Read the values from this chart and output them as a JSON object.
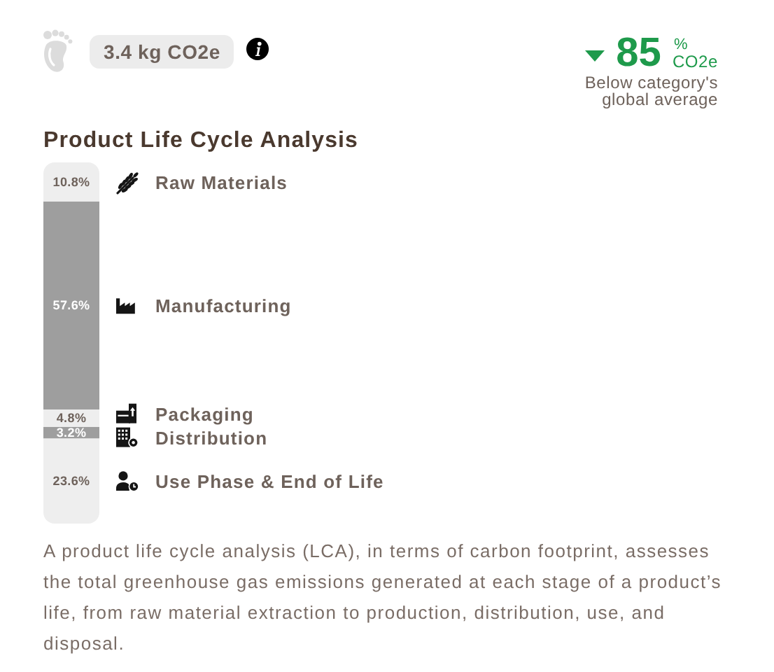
{
  "chart_data": {
    "type": "bar",
    "title": "Product Life Cycle Analysis",
    "categories": [
      null
    ],
    "stacked": true,
    "ylim": [
      0,
      100
    ],
    "tick_labels": false,
    "series": [
      {
        "name": "Use Phase & End of Life",
        "color": "#eeeeee",
        "values": [
          23.6
        ],
        "value_labels": [
          "23.6%"
        ]
      },
      {
        "name": "Distribution",
        "color": "#9e9e9e",
        "values": [
          3.2
        ],
        "value_labels": [
          "3.2%"
        ]
      },
      {
        "name": "Packaging",
        "color": "#eeeeee",
        "values": [
          4.8
        ],
        "value_labels": [
          "4.8%"
        ]
      },
      {
        "name": "Manufacturing",
        "color": "#9e9e9e",
        "values": [
          57.6
        ],
        "value_labels": [
          "57.6%"
        ]
      },
      {
        "name": "Raw Materials",
        "color": "#eeeeee",
        "values": [
          10.8
        ],
        "value_labels": [
          "10.8%"
        ]
      }
    ],
    "annotations": [
      "3.4 kg CO2e",
      "85",
      "%",
      "CO2e",
      "Below category's global average",
      "A product life cycle analysis (LCA), in terms of carbon footprint, assesses the total greenhouse gas emissions generated at each stage of a product’s life, from raw material extraction to production, distribution, use, and disposal."
    ]
  }
}
